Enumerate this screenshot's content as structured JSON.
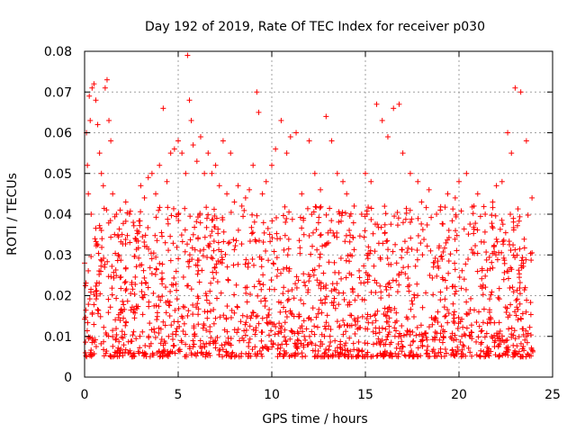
{
  "chart_data": {
    "type": "scatter",
    "title": "Day 192 of 2019, Rate Of TEC Index for receiver p030",
    "xlabel": "GPS time / hours",
    "ylabel": "ROTI / TECUs",
    "xlim": [
      0,
      25
    ],
    "ylim": [
      0,
      0.08
    ],
    "xticks": [
      0,
      5,
      10,
      15,
      20,
      25
    ],
    "yticks": [
      0,
      0.01,
      0.02,
      0.03,
      0.04,
      0.05,
      0.06,
      0.07,
      0.08
    ],
    "xtick_labels": [
      "0",
      "5",
      "10",
      "15",
      "20",
      "25"
    ],
    "ytick_labels": [
      "0",
      "0.01",
      "0.02",
      "0.03",
      "0.04",
      "0.05",
      "0.06",
      "0.07",
      "0.08"
    ],
    "grid": true,
    "marker": "+",
    "color": "#ff0000",
    "series": [
      {
        "x": [
          0.0,
          0.1,
          0.15,
          0.2,
          0.25,
          0.3,
          0.35,
          0.4,
          0.5,
          0.6,
          0.7,
          0.8,
          0.9,
          1.0,
          1.1,
          1.2,
          1.3,
          1.4,
          1.5,
          1.6,
          1.7,
          1.8,
          1.9,
          2.0,
          2.2,
          2.4,
          2.6,
          2.8,
          3.0,
          3.2,
          3.4,
          3.6,
          3.8,
          4.0,
          4.2,
          4.4,
          4.6,
          4.8,
          5.0,
          5.2,
          5.4,
          5.5,
          5.6,
          5.7,
          5.8,
          6.0,
          6.2,
          6.4,
          6.6,
          6.8,
          7.0,
          7.2,
          7.4,
          7.6,
          7.8,
          8.0,
          8.2,
          8.4,
          8.6,
          8.8,
          9.0,
          9.2,
          9.3,
          9.5,
          9.7,
          10.0,
          10.2,
          10.5,
          10.8,
          11.0,
          11.3,
          11.6,
          12.0,
          12.3,
          12.6,
          12.9,
          13.2,
          13.5,
          13.8,
          14.0,
          14.4,
          14.8,
          15.0,
          15.3,
          15.6,
          15.9,
          16.2,
          16.5,
          16.8,
          17.0,
          17.4,
          17.8,
          18.0,
          18.4,
          18.8,
          19.0,
          19.4,
          19.8,
          20.0,
          20.4,
          20.8,
          21.0,
          21.4,
          21.8,
          22.0,
          22.3,
          22.6,
          22.8,
          23.0,
          23.3,
          23.6,
          23.9
        ],
        "y": [
          0.028,
          0.06,
          0.052,
          0.045,
          0.069,
          0.063,
          0.04,
          0.071,
          0.072,
          0.068,
          0.062,
          0.055,
          0.05,
          0.047,
          0.071,
          0.073,
          0.063,
          0.058,
          0.045,
          0.035,
          0.04,
          0.03,
          0.041,
          0.035,
          0.043,
          0.04,
          0.038,
          0.036,
          0.047,
          0.044,
          0.049,
          0.05,
          0.045,
          0.052,
          0.066,
          0.048,
          0.055,
          0.056,
          0.058,
          0.055,
          0.05,
          0.079,
          0.068,
          0.063,
          0.057,
          0.053,
          0.059,
          0.05,
          0.055,
          0.05,
          0.052,
          0.047,
          0.058,
          0.045,
          0.055,
          0.043,
          0.047,
          0.042,
          0.044,
          0.046,
          0.052,
          0.07,
          0.065,
          0.045,
          0.048,
          0.052,
          0.056,
          0.063,
          0.055,
          0.059,
          0.06,
          0.045,
          0.058,
          0.05,
          0.046,
          0.064,
          0.058,
          0.05,
          0.048,
          0.045,
          0.042,
          0.04,
          0.05,
          0.048,
          0.067,
          0.063,
          0.059,
          0.066,
          0.067,
          0.055,
          0.05,
          0.048,
          0.043,
          0.046,
          0.04,
          0.041,
          0.045,
          0.044,
          0.048,
          0.05,
          0.042,
          0.045,
          0.04,
          0.043,
          0.047,
          0.048,
          0.06,
          0.055,
          0.071,
          0.07,
          0.058,
          0.044
        ]
      }
    ],
    "density_note_values": {
      "baseline_band": [
        0.005,
        0.03
      ]
    }
  }
}
